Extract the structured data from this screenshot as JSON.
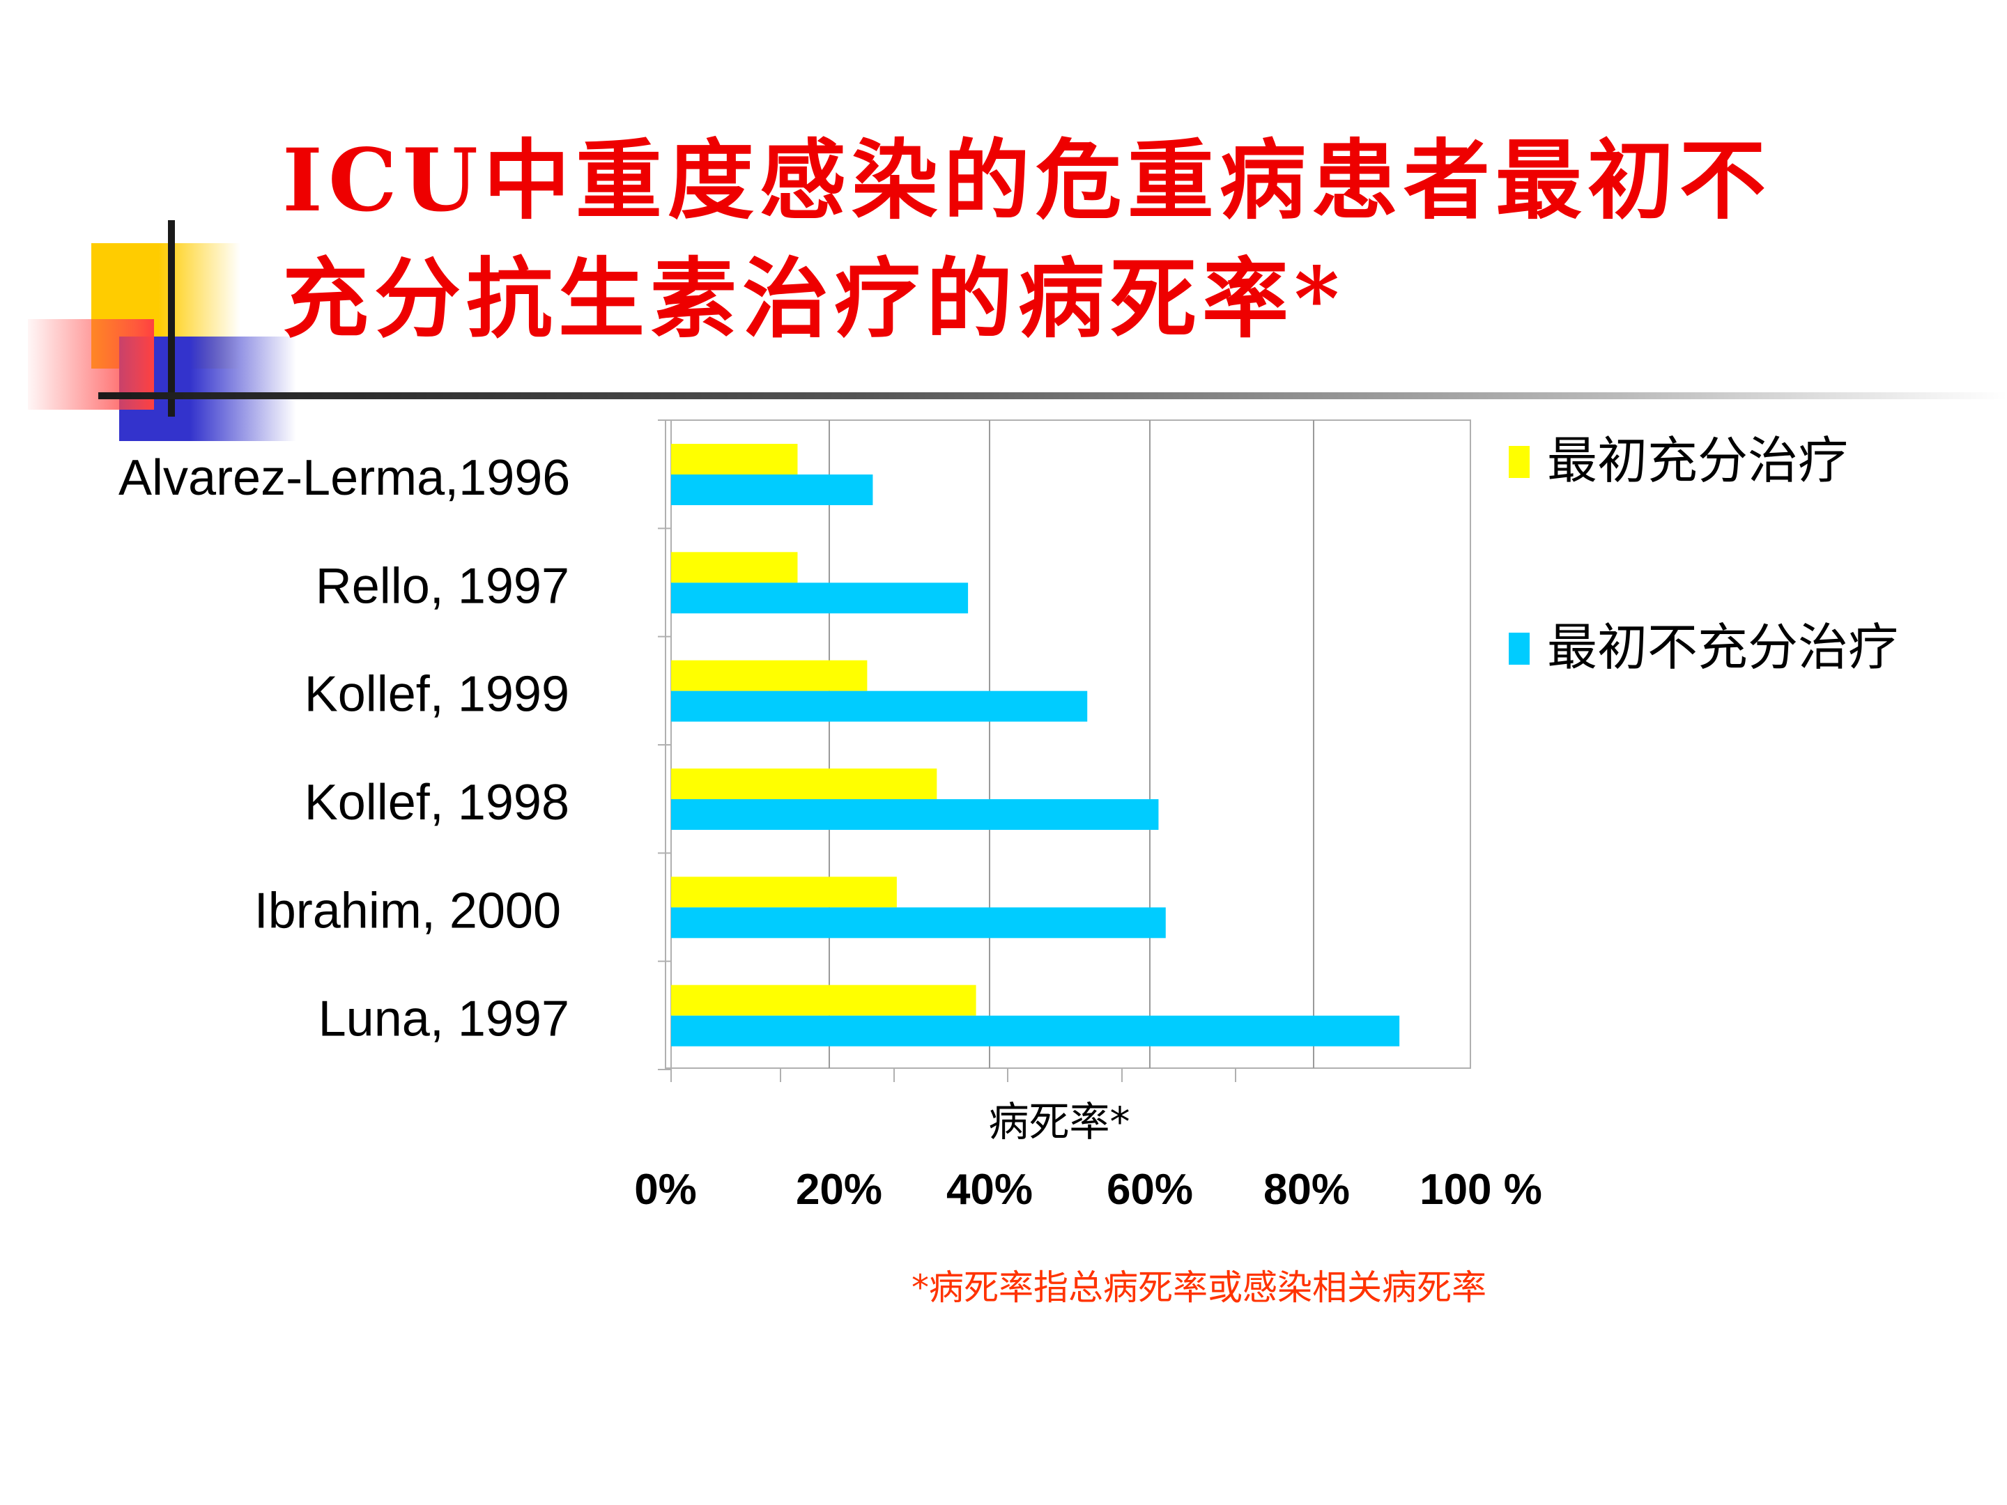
{
  "slide": {
    "title_lines": [
      "ICU中重度感染的危重病患者最初不",
      "充分抗生素治疗的病死率*"
    ],
    "footnote": "*病死率指总病死率或感染相关病死率"
  },
  "colors": {
    "title": "#ee0000",
    "series_adequate": "#ffff00",
    "series_inadequate": "#00ccff",
    "footnote": "#ff3300"
  },
  "chart_data": {
    "type": "bar",
    "orientation": "horizontal",
    "categories": [
      "Alvarez-Lerma,1996",
      "Rello, 1997",
      "Kollef, 1999",
      "Kollef, 1998",
      "Ibrahim, 2000",
      "Luna, 1997"
    ],
    "series": [
      {
        "name": "最初充分治疗",
        "values": [
          15.8,
          15.8,
          24.5,
          33.2,
          28.2,
          38.1
        ]
      },
      {
        "name": "最初不充分治疗",
        "values": [
          25.2,
          37.1,
          52.0,
          60.9,
          61.8,
          91.0
        ]
      }
    ],
    "xlabel": "病死率*",
    "x_ticks": [
      "0%",
      "20%",
      "40%",
      "60%",
      "80%",
      "100 %"
    ],
    "xlim": [
      0,
      100
    ],
    "grid": true,
    "legend_position": "right"
  }
}
